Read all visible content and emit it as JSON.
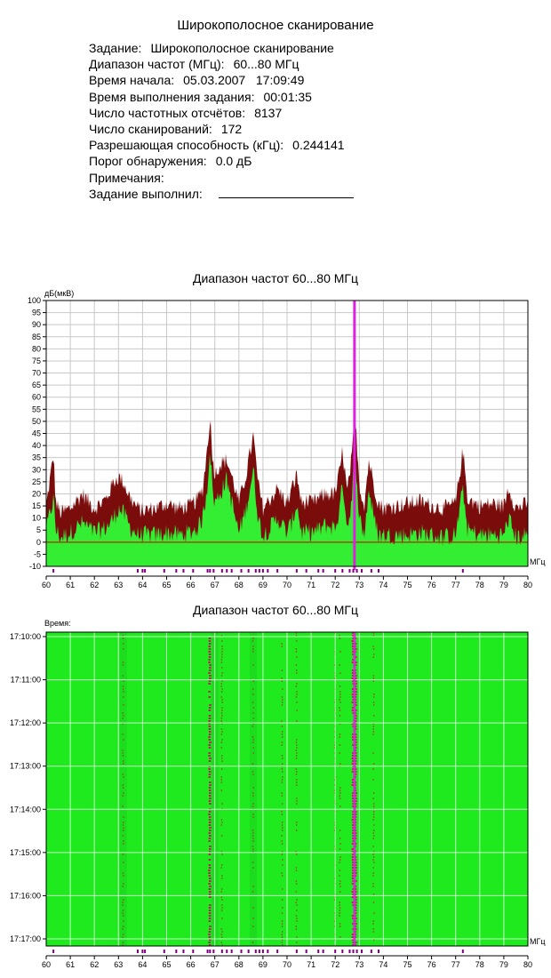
{
  "report": {
    "title": "Широкополосное сканирование",
    "fields": [
      {
        "label": "Задание:",
        "value": "Широкополосное сканирование"
      },
      {
        "label": "Диапазон частот (МГц):",
        "value": "60...80 МГц"
      },
      {
        "label": "Время начала:",
        "value": "05.03.2007   17:09:49"
      },
      {
        "label": "Время выполнения задания:",
        "value": "00:01:35"
      },
      {
        "label": "Число частотных отсчётов:",
        "value": "8137"
      },
      {
        "label": "Число сканирований:",
        "value": "172"
      },
      {
        "label": "Разрешающая способность (кГц):",
        "value": "0.244141"
      },
      {
        "label": "Порог обнаружения:",
        "value": "0.0 дБ"
      },
      {
        "label": "Примечания:",
        "value": ""
      }
    ],
    "signature_label": "Задание выполнил:"
  },
  "colors": {
    "current": "#33ee33",
    "max_hold": "#7a0c0c",
    "marker": "#e020e0",
    "threshold": "#cc0000",
    "detection_tick": "#800080",
    "grid": "#c8c8c8",
    "waterfall_bg": "#1eea1e"
  },
  "chart_data": [
    {
      "type": "area",
      "title": "Диапазон частот 60...80 МГц",
      "ylabel": "дБ(мкВ)",
      "xlabel": "МГц",
      "xlim": [
        60,
        80
      ],
      "ylim": [
        -10,
        100
      ],
      "x_ticks": [
        "60",
        "61",
        "62",
        "63",
        "64",
        "65",
        "66",
        "67",
        "68",
        "69",
        "70",
        "71",
        "72",
        "73",
        "74",
        "75",
        "76",
        "77",
        "78",
        "79",
        "80"
      ],
      "y_ticks": [
        "100",
        "95",
        "90",
        "85",
        "80",
        "75",
        "70",
        "65",
        "60",
        "55",
        "50",
        "45",
        "40",
        "35",
        "30",
        "25",
        "20",
        "15",
        "10",
        "5",
        "0",
        "-5",
        "-10"
      ],
      "grid": true,
      "threshold_db": 0,
      "marker_mhz": 72.8,
      "series": [
        {
          "role": "max-hold",
          "x": [
            60,
            60.3,
            60.4,
            60.6,
            61,
            61.5,
            62,
            62.5,
            62.8,
            63,
            63.2,
            63.5,
            63.8,
            64,
            64.5,
            65,
            65.5,
            66,
            66.3,
            66.5,
            66.7,
            66.8,
            66.9,
            67,
            67.2,
            67.5,
            67.8,
            68,
            68.3,
            68.6,
            68.8,
            69,
            69.3,
            69.6,
            70,
            70.2,
            70.4,
            70.6,
            70.8,
            71,
            71.3,
            71.6,
            72,
            72.2,
            72.3,
            72.5,
            72.7,
            72.8,
            72.9,
            73,
            73.2,
            73.4,
            73.6,
            73.8,
            74,
            74.5,
            75,
            75.5,
            76,
            76.5,
            77,
            77.3,
            77.5,
            78,
            78.5,
            79,
            79.2,
            79.5,
            80
          ],
          "y": [
            15,
            36,
            16,
            12,
            14,
            20,
            14,
            18,
            25,
            27,
            25,
            18,
            14,
            13,
            14,
            16,
            14,
            15,
            18,
            22,
            40,
            52,
            36,
            28,
            32,
            34,
            24,
            16,
            28,
            44,
            24,
            14,
            18,
            22,
            16,
            22,
            28,
            16,
            17,
            16,
            18,
            20,
            20,
            30,
            38,
            20,
            36,
            50,
            42,
            24,
            15,
            34,
            24,
            16,
            14,
            15,
            16,
            17,
            15,
            14,
            16,
            38,
            18,
            15,
            16,
            15,
            23,
            14,
            16
          ]
        },
        {
          "role": "current",
          "x": [
            60,
            60.3,
            60.4,
            60.6,
            61,
            61.5,
            62,
            62.5,
            62.8,
            63,
            63.2,
            63.5,
            63.8,
            64,
            64.5,
            65,
            65.5,
            66,
            66.3,
            66.5,
            66.7,
            66.8,
            66.9,
            67,
            67.2,
            67.5,
            67.8,
            68,
            68.3,
            68.6,
            68.8,
            69,
            69.3,
            69.6,
            70,
            70.2,
            70.4,
            70.6,
            70.8,
            71,
            71.3,
            71.6,
            72,
            72.2,
            72.3,
            72.5,
            72.7,
            72.8,
            72.9,
            73,
            73.2,
            73.4,
            73.6,
            73.8,
            74,
            74.5,
            75,
            75.5,
            76,
            76.5,
            77,
            77.3,
            77.5,
            78,
            78.5,
            79,
            79.2,
            79.5,
            80
          ],
          "y": [
            5,
            18,
            5,
            2,
            4,
            8,
            4,
            6,
            10,
            14,
            12,
            6,
            3,
            3,
            3,
            4,
            3,
            4,
            6,
            10,
            24,
            40,
            22,
            16,
            20,
            26,
            12,
            4,
            14,
            30,
            10,
            3,
            6,
            10,
            4,
            8,
            16,
            4,
            4,
            4,
            5,
            7,
            6,
            14,
            26,
            6,
            18,
            40,
            26,
            10,
            3,
            22,
            10,
            3,
            3,
            3,
            3,
            4,
            3,
            2,
            3,
            22,
            5,
            3,
            3,
            3,
            10,
            2,
            3
          ]
        }
      ]
    },
    {
      "type": "heatmap",
      "title": "Диапазон частот 60...80 МГц",
      "ylabel": "Время:",
      "xlabel": "МГц",
      "xlim": [
        60,
        80
      ],
      "y_ticks": [
        "17:10:00",
        "17:11:00",
        "17:12:00",
        "17:13:00",
        "17:14:00",
        "17:15:00",
        "17:16:00",
        "17:17:00"
      ],
      "x_ticks": [
        "60",
        "61",
        "62",
        "63",
        "64",
        "65",
        "66",
        "67",
        "68",
        "69",
        "70",
        "71",
        "72",
        "73",
        "74",
        "75",
        "76",
        "77",
        "78",
        "79",
        "80"
      ],
      "grid": true,
      "marker_mhz": 72.8,
      "signal_lines_mhz": [
        63.2,
        66.8,
        67.3,
        68.6,
        69.8,
        70.4,
        72.0,
        72.2,
        72.75,
        72.85,
        73.6
      ]
    }
  ],
  "detections_mhz": [
    60.3,
    63.8,
    64.0,
    64.1,
    64.9,
    65.4,
    65.7,
    66.1,
    66.7,
    66.8,
    66.95,
    67.3,
    67.5,
    67.7,
    68.1,
    68.4,
    68.7,
    68.85,
    69.0,
    69.2,
    69.6,
    70.4,
    70.8,
    71.3,
    71.5,
    72.0,
    72.3,
    72.6,
    72.75,
    72.9,
    73.1,
    73.5,
    73.8,
    77.3
  ]
}
